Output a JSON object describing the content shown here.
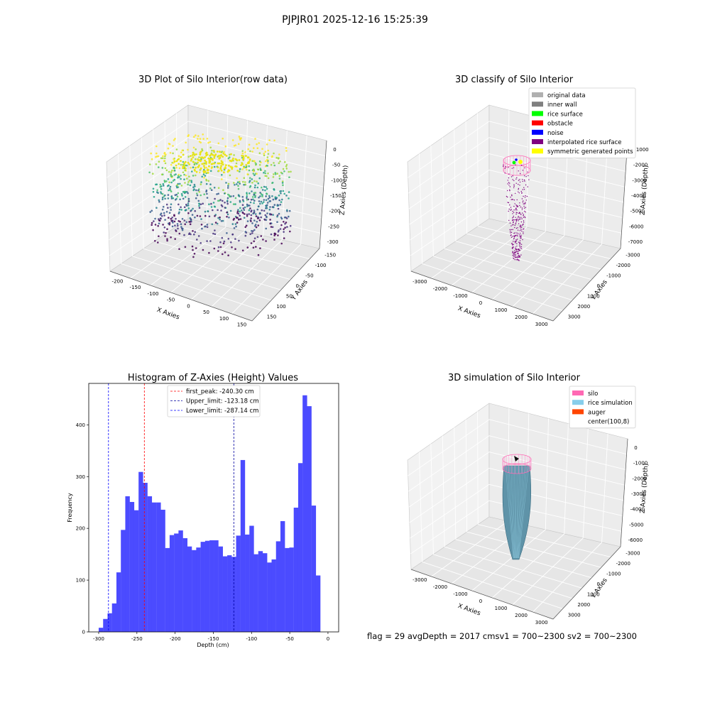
{
  "figure": {
    "suptitle": "PJPJR01 2025-12-16 15:25:39",
    "status_line": "flag = 29  avgDepth = 2017 cmsv1 = 700~2300  sv2 = 700~2300"
  },
  "chart_data": [
    {
      "type": "scatter",
      "projection": "3d",
      "title": "3D Plot of Silo Interior(row data)",
      "xlabel": "X Axies",
      "ylabel": "Y Axies",
      "zlabel": "Z Axies (Depth)",
      "x_ticks": [
        "-200",
        "-150",
        "-100",
        "-50",
        "0",
        "50",
        "100",
        "150"
      ],
      "y_ticks": [
        "-150",
        "-100",
        "-50",
        "0",
        "50",
        "100",
        "150"
      ],
      "z_ticks": [
        "0",
        "-50",
        "-100",
        "-150",
        "-200",
        "-250",
        "-300"
      ],
      "xlim": [
        -200,
        170
      ],
      "ylim": [
        -160,
        170
      ],
      "zlim": [
        -300,
        0
      ],
      "colormap": "viridis"
    },
    {
      "type": "scatter",
      "projection": "3d",
      "title": "3D classify of Silo Interior",
      "xlabel": "X Axies",
      "ylabel": "Y Axies",
      "zlabel": "Z Axies (Depth)",
      "x_ticks": [
        "-3000",
        "-2000",
        "-1000",
        "0",
        "1000",
        "2000",
        "3000"
      ],
      "y_ticks": [
        "-3000",
        "-2000",
        "-1000",
        "0",
        "1000",
        "2000",
        "3000"
      ],
      "z_ticks": [
        "-1000",
        "-2000",
        "-3000",
        "-4000",
        "-5000",
        "-6000",
        "-7000"
      ],
      "legend_position": "top-right",
      "legend": [
        {
          "label": "original data",
          "color": "#b0b0b0"
        },
        {
          "label": "inner wall",
          "color": "#808080"
        },
        {
          "label": "rice surface",
          "color": "#00ff00"
        },
        {
          "label": "obstacle",
          "color": "#ff0000"
        },
        {
          "label": "noise",
          "color": "#0000ff"
        },
        {
          "label": "interpolated rice surface",
          "color": "#800080"
        },
        {
          "label": "symmetric generated points",
          "color": "#ffff00"
        }
      ]
    },
    {
      "type": "bar",
      "title": "Histogram of Z-Axies (Height) Values",
      "xlabel": "Depth (cm)",
      "ylabel": "Frequency",
      "xlim": [
        -313,
        14
      ],
      "ylim": [
        0,
        480
      ],
      "x_ticks": [
        -300,
        -250,
        -200,
        -150,
        -100,
        -50,
        0
      ],
      "y_ticks": [
        0,
        100,
        200,
        300,
        400
      ],
      "bar_color": "#4b4bff",
      "bin_start": -300,
      "bin_width": 5.8,
      "values": [
        8,
        25,
        36,
        55,
        115,
        197,
        262,
        251,
        235,
        309,
        288,
        262,
        250,
        250,
        236,
        162,
        187,
        190,
        196,
        181,
        165,
        158,
        163,
        174,
        176,
        177,
        177,
        165,
        146,
        148,
        145,
        186,
        332,
        188,
        205,
        150,
        156,
        152,
        134,
        140,
        175,
        214,
        162,
        163,
        240,
        326,
        457,
        436,
        244,
        109
      ],
      "vlines": [
        {
          "x": -240.3,
          "color": "#ff0000",
          "label": "first_peak: -240.30 cm"
        },
        {
          "x": -123.18,
          "color": "#0000a0",
          "label": "Upper_limit: -123.18 cm"
        },
        {
          "x": -287.14,
          "color": "#0000ff",
          "label": "Lower_limit: -287.14 cm"
        }
      ],
      "legend_position": "top-center"
    },
    {
      "type": "scatter",
      "projection": "3d",
      "title": "3D simulation of Silo Interior",
      "xlabel": "X Axies",
      "ylabel": "Y Axies",
      "zlabel": "Z Axies (Depth)",
      "x_ticks": [
        "-3000",
        "-2000",
        "-1000",
        "0",
        "1000",
        "2000",
        "3000"
      ],
      "y_ticks": [
        "-3000",
        "-2000",
        "-1000",
        "0",
        "1000",
        "2000",
        "3000"
      ],
      "z_ticks": [
        "0",
        "-1000",
        "-2000",
        "-3000",
        "-4000",
        "-5000",
        "-6000"
      ],
      "legend_position": "top-right",
      "legend": [
        {
          "label": "silo",
          "color": "#ff69b4"
        },
        {
          "label": "rice simulation",
          "color": "#87ceeb"
        },
        {
          "label": "auger",
          "color": "#ff4500"
        },
        {
          "label": "center(100,8)",
          "color": "#ffffff"
        }
      ]
    }
  ]
}
